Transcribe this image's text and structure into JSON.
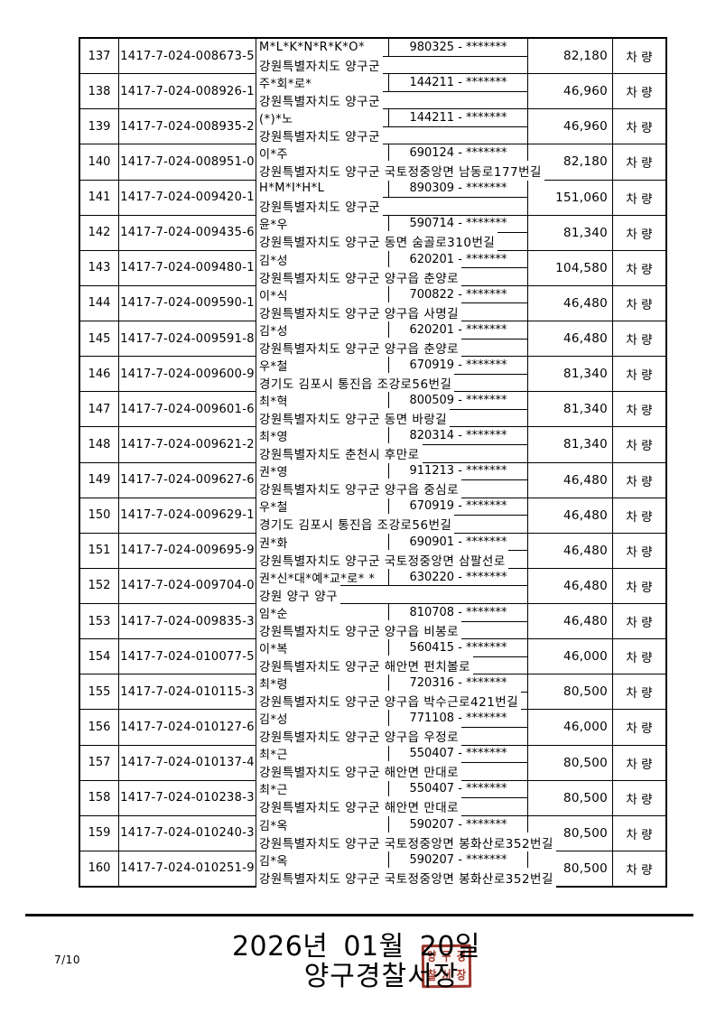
{
  "table": {
    "rows": [
      {
        "no": "137",
        "id": "1417-7-024-008673-5",
        "name": "M*L*K*N*R*K*O*",
        "birth": "980325 - *******",
        "address": "강원특별자치도 양구군",
        "amount": "82,180",
        "type": "차 량"
      },
      {
        "no": "138",
        "id": "1417-7-024-008926-1",
        "name": "주*회*로*",
        "birth": "144211 - *******",
        "address": "강원특별자치도 양구군",
        "amount": "46,960",
        "type": "차 량"
      },
      {
        "no": "139",
        "id": "1417-7-024-008935-2",
        "name": "(*)*노",
        "birth": "144211 - *******",
        "address": "강원특별자치도 양구군",
        "amount": "46,960",
        "type": "차 량"
      },
      {
        "no": "140",
        "id": "1417-7-024-008951-0",
        "name": "이*주",
        "birth": "690124 - *******",
        "address": "강원특별자치도 양구군 국토정중앙면 남동로177번길",
        "amount": "82,180",
        "type": "차 량"
      },
      {
        "no": "141",
        "id": "1417-7-024-009420-1",
        "name": "H*M*I*H*L",
        "birth": "890309 - *******",
        "address": "강원특별자치도 양구군",
        "amount": "151,060",
        "type": "차 량"
      },
      {
        "no": "142",
        "id": "1417-7-024-009435-6",
        "name": "윤*우",
        "birth": "590714 - *******",
        "address": "강원특별자치도 양구군 동면 숨골로310번길",
        "amount": "81,340",
        "type": "차 량"
      },
      {
        "no": "143",
        "id": "1417-7-024-009480-1",
        "name": "김*성",
        "birth": "620201 - *******",
        "address": "강원특별자치도 양구군 양구읍 춘양로",
        "amount": "104,580",
        "type": "차 량"
      },
      {
        "no": "144",
        "id": "1417-7-024-009590-1",
        "name": "이*식",
        "birth": "700822 - *******",
        "address": "강원특별자치도 양구군 양구읍 사명길",
        "amount": "46,480",
        "type": "차 량"
      },
      {
        "no": "145",
        "id": "1417-7-024-009591-8",
        "name": "김*성",
        "birth": "620201 - *******",
        "address": "강원특별자치도 양구군 양구읍 춘양로",
        "amount": "46,480",
        "type": "차 량"
      },
      {
        "no": "146",
        "id": "1417-7-024-009600-9",
        "name": "우*철",
        "birth": "670919 - *******",
        "address": "경기도 김포시 통진읍 조강로56번길",
        "amount": "81,340",
        "type": "차 량"
      },
      {
        "no": "147",
        "id": "1417-7-024-009601-6",
        "name": "최*혁",
        "birth": "800509 - *******",
        "address": "강원특별자치도 양구군 동면 바랑길",
        "amount": "81,340",
        "type": "차 량"
      },
      {
        "no": "148",
        "id": "1417-7-024-009621-2",
        "name": "최*영",
        "birth": "820314 - *******",
        "address": "강원특별자치도 춘천시 후만로",
        "amount": "81,340",
        "type": "차 량"
      },
      {
        "no": "149",
        "id": "1417-7-024-009627-6",
        "name": "권*영",
        "birth": "911213 - *******",
        "address": "강원특별자치도 양구군 양구읍 중심로",
        "amount": "46,480",
        "type": "차 량"
      },
      {
        "no": "150",
        "id": "1417-7-024-009629-1",
        "name": "우*철",
        "birth": "670919 - *******",
        "address": "경기도 김포시 통진읍 조강로56번길",
        "amount": "46,480",
        "type": "차 량"
      },
      {
        "no": "151",
        "id": "1417-7-024-009695-9",
        "name": "권*화",
        "birth": "690901 - *******",
        "address": "강원특별자치도 양구군 국토정중앙면 삼팔선로",
        "amount": "46,480",
        "type": "차 량"
      },
      {
        "no": "152",
        "id": "1417-7-024-009704-0",
        "name": "권*신*대*예*교*로* *",
        "birth": "630220 - *******",
        "address": "강원 양구 양구",
        "amount": "46,480",
        "type": "차 량"
      },
      {
        "no": "153",
        "id": "1417-7-024-009835-3",
        "name": "임*순",
        "birth": "810708 - *******",
        "address": "강원특별자치도 양구군 양구읍 비봉로",
        "amount": "46,480",
        "type": "차 량"
      },
      {
        "no": "154",
        "id": "1417-7-024-010077-5",
        "name": "이*복",
        "birth": "560415 - *******",
        "address": "강원특별자치도 양구군 해안면 펀치볼로",
        "amount": "46,000",
        "type": "차 량"
      },
      {
        "no": "155",
        "id": "1417-7-024-010115-3",
        "name": "최*령",
        "birth": "720316 - *******",
        "address": "강원특별자치도 양구군 양구읍 박수근로421번길",
        "amount": "80,500",
        "type": "차 량"
      },
      {
        "no": "156",
        "id": "1417-7-024-010127-6",
        "name": "김*성",
        "birth": "771108 - *******",
        "address": "강원특별자치도 양구군 양구읍 우정로",
        "amount": "46,000",
        "type": "차 량"
      },
      {
        "no": "157",
        "id": "1417-7-024-010137-4",
        "name": "최*근",
        "birth": "550407 - *******",
        "address": "강원특별자치도 양구군 해안면 만대로",
        "amount": "80,500",
        "type": "차 량"
      },
      {
        "no": "158",
        "id": "1417-7-024-010238-3",
        "name": "최*근",
        "birth": "550407 - *******",
        "address": "강원특별자치도 양구군 해안면 만대로",
        "amount": "80,500",
        "type": "차 량"
      },
      {
        "no": "159",
        "id": "1417-7-024-010240-3",
        "name": "김*옥",
        "birth": "590207 - *******",
        "address": "강원특별자치도 양구군 국토정중앙면 봉화산로352번길",
        "amount": "80,500",
        "type": "차 량"
      },
      {
        "no": "160",
        "id": "1417-7-024-010251-9",
        "name": "김*옥",
        "birth": "590207 - *******",
        "address": "강원특별자치도 양구군 국토정중앙면 봉화산로352번길",
        "amount": "80,500",
        "type": "차 량"
      }
    ]
  },
  "footer": {
    "date": "2026년 01월 20일",
    "issuer": "양구경찰서장",
    "page_number": "7/10",
    "stamp_text": "양구경찰서장인",
    "stamp_color": "#9c352c"
  }
}
